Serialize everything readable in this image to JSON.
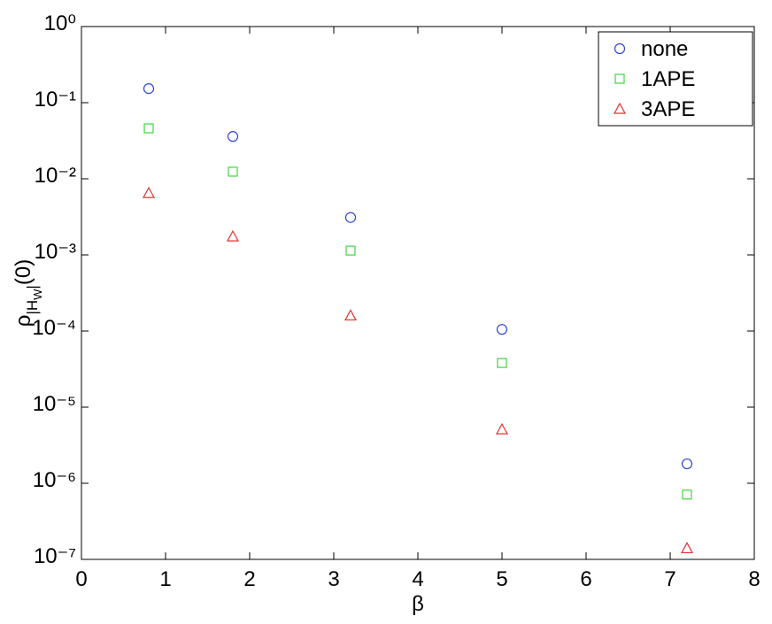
{
  "chart_data": {
    "type": "scatter",
    "x": [
      0.8,
      1.8,
      3.2,
      5,
      7.2
    ],
    "series": [
      {
        "name": "none",
        "color": "#2f45d6",
        "marker": "circle",
        "values": [
          0.153,
          0.036,
          0.0031,
          0.000105,
          1.8e-06
        ]
      },
      {
        "name": "1APE",
        "color": "#3fd63f",
        "marker": "square",
        "values": [
          0.046,
          0.0124,
          0.00114,
          3.8e-05,
          7.1e-07
        ]
      },
      {
        "name": "3APE",
        "color": "#e23030",
        "marker": "triangle",
        "values": [
          0.0065,
          0.00175,
          0.00016,
          5.1e-06,
          1.4e-07
        ]
      }
    ],
    "xlabel": "β",
    "ylabel": [
      "ρ",
      "|H",
      "W",
      "|",
      "(0)"
    ],
    "xlim": [
      0,
      8
    ],
    "xticks": [
      0,
      1,
      2,
      3,
      4,
      5,
      6,
      7,
      8
    ],
    "ylim": [
      1e-07,
      1
    ],
    "ylog": true,
    "yticks": [
      {
        "value": 1e-07,
        "label": "10⁻⁷"
      },
      {
        "value": 1e-06,
        "label": "10⁻⁶"
      },
      {
        "value": 1e-05,
        "label": "10⁻⁵"
      },
      {
        "value": 0.0001,
        "label": "10⁻⁴"
      },
      {
        "value": 0.001,
        "label": "10⁻³"
      },
      {
        "value": 0.01,
        "label": "10⁻²"
      },
      {
        "value": 0.1,
        "label": "10⁻¹"
      },
      {
        "value": 1,
        "label": "10⁰"
      }
    ],
    "legend": "upper right"
  }
}
